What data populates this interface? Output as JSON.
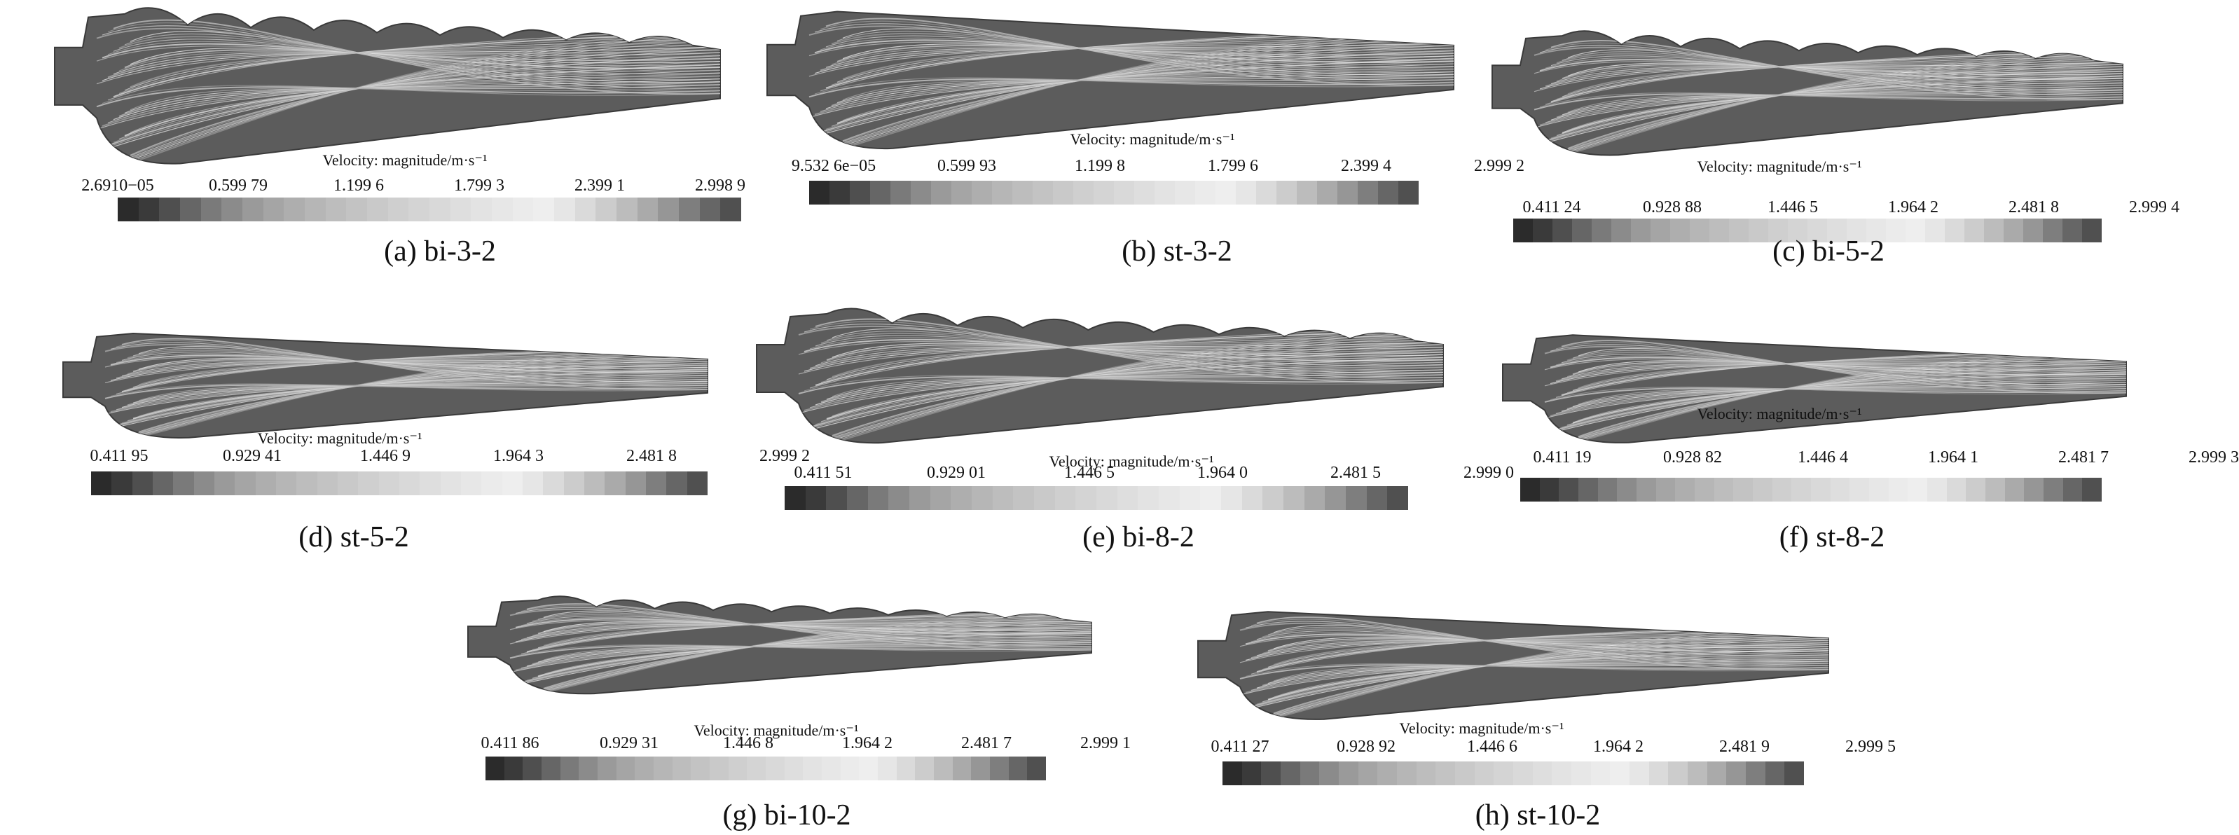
{
  "legend_title": "Velocity: magnitude/m·s⁻¹",
  "colormap": [
    "#2b2b2b",
    "#3a3a3a",
    "#4f4f4f",
    "#666666",
    "#7a7a7a",
    "#8b8b8b",
    "#9a9a9a",
    "#a5a5a5",
    "#aeaeae",
    "#b6b6b6",
    "#bdbdbd",
    "#c3c3c3",
    "#c9c9c9",
    "#cfcfcf",
    "#d4d4d4",
    "#d9d9d9",
    "#dedede",
    "#e3e3e3",
    "#e7e7e7",
    "#ebebeb",
    "#eeeeee",
    "#e6e6e6",
    "#dadada",
    "#cccccc",
    "#bcbcbc",
    "#aaaaaa",
    "#969696",
    "#7e7e7e",
    "#666666",
    "#505050"
  ],
  "panels": [
    {
      "id": "a",
      "caption": "(a) bi-3-2",
      "edge": "wavy",
      "ticks": [
        "2.6910−05",
        "0.599 79",
        "1.199 6",
        "1.799 3",
        "2.399 1",
        "2.998 9"
      ]
    },
    {
      "id": "b",
      "caption": "(b) st-3-2",
      "edge": "straight",
      "ticks": [
        "9.532 6e−05",
        "0.599 93",
        "1.199 8",
        "1.799 6",
        "2.399 4",
        "2.999 2"
      ]
    },
    {
      "id": "c",
      "caption": "(c) bi-5-2",
      "edge": "wavy",
      "ticks": [
        "0.411 24",
        "0.928 88",
        "1.446 5",
        "1.964 2",
        "2.481 8",
        "2.999 4"
      ]
    },
    {
      "id": "d",
      "caption": "(d) st-5-2",
      "edge": "straight",
      "ticks": [
        "0.411 95",
        "0.929 41",
        "1.446 9",
        "1.964 3",
        "2.481 8",
        "2.999 2"
      ]
    },
    {
      "id": "e",
      "caption": "(e) bi-8-2",
      "edge": "wavy",
      "ticks": [
        "0.411 51",
        "0.929 01",
        "1.446 5",
        "1.964 0",
        "2.481 5",
        "2.999 0"
      ]
    },
    {
      "id": "f",
      "caption": "(f) st-8-2",
      "edge": "straight",
      "ticks": [
        "0.411 19",
        "0.928 82",
        "1.446 4",
        "1.964 1",
        "2.481 7",
        "2.999 3"
      ]
    },
    {
      "id": "g",
      "caption": "(g) bi-10-2",
      "edge": "wavy",
      "ticks": [
        "0.411 86",
        "0.929 31",
        "1.446 8",
        "1.964 2",
        "2.481 7",
        "2.999 1"
      ]
    },
    {
      "id": "h",
      "caption": "(h) st-10-2",
      "edge": "straight",
      "ticks": [
        "0.411 27",
        "0.928 92",
        "1.446 6",
        "1.964 2",
        "2.481 9",
        "2.999 5"
      ]
    }
  ]
}
